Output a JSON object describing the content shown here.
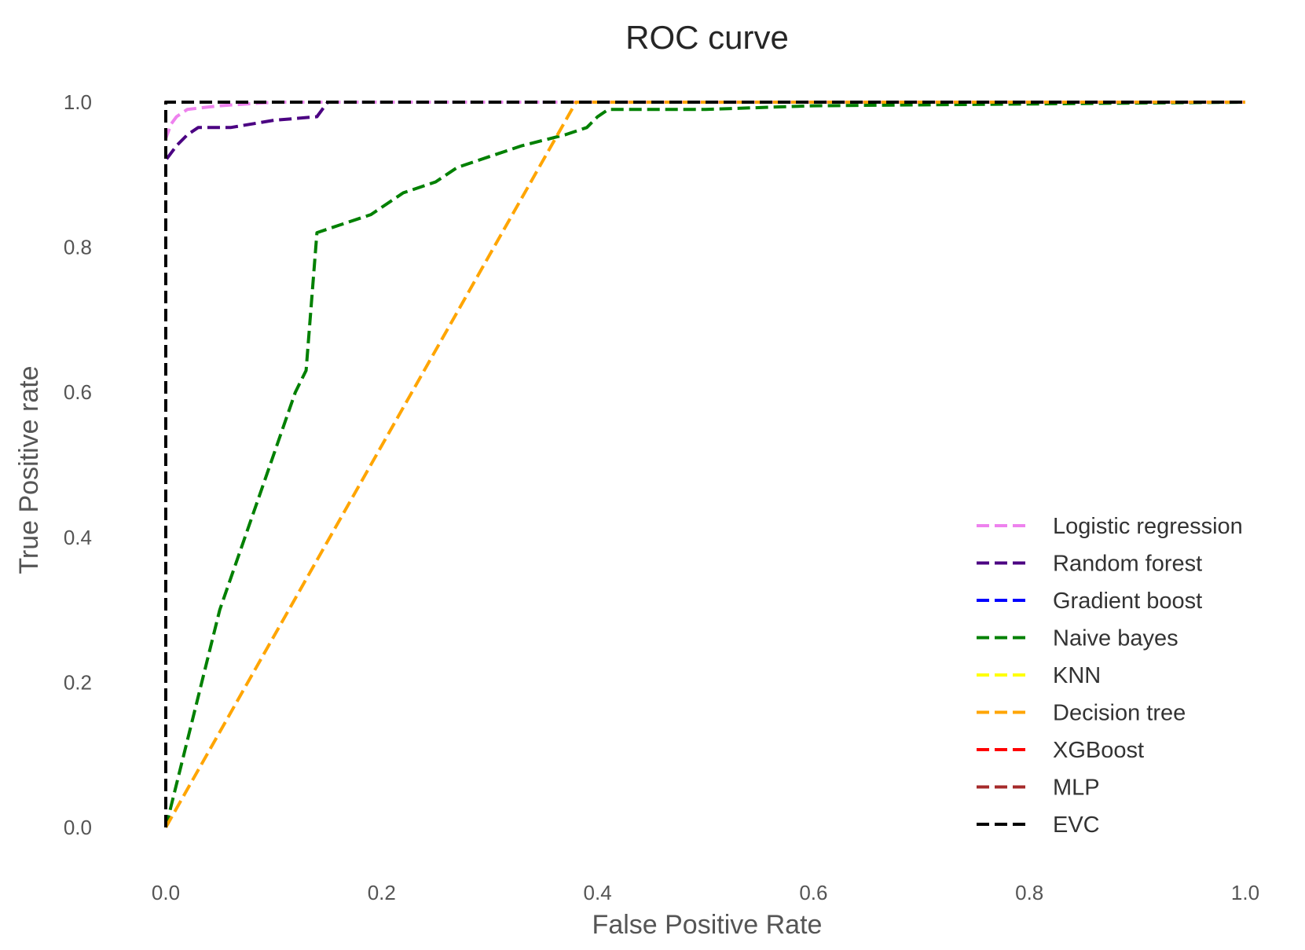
{
  "chart_data": {
    "type": "line",
    "title": "ROC curve",
    "xlabel": "False Positive Rate",
    "ylabel": "True Positive rate",
    "xlim": [
      0.0,
      1.0
    ],
    "ylim": [
      0.0,
      1.0
    ],
    "x_ticks": [
      "0.0",
      "0.2",
      "0.4",
      "0.6",
      "0.8",
      "1.0"
    ],
    "y_ticks": [
      "0.0",
      "0.2",
      "0.4",
      "0.6",
      "0.8",
      "1.0"
    ],
    "grid": false,
    "legend_position": "lower-right",
    "series": [
      {
        "name": "Logistic regression",
        "color": "#ee82ee",
        "x": [
          0.0,
          0.0,
          0.005,
          0.01,
          0.02,
          0.05,
          0.1,
          1.0
        ],
        "y": [
          0.0,
          0.95,
          0.97,
          0.98,
          0.99,
          0.995,
          1.0,
          1.0
        ]
      },
      {
        "name": "Random forest",
        "color": "#4b0082",
        "x": [
          0.0,
          0.0,
          0.005,
          0.01,
          0.02,
          0.03,
          0.06,
          0.1,
          0.14,
          0.15,
          1.0
        ],
        "y": [
          0.0,
          0.92,
          0.93,
          0.94,
          0.955,
          0.965,
          0.965,
          0.975,
          0.98,
          1.0,
          1.0
        ]
      },
      {
        "name": "Gradient boost",
        "color": "#0000ff",
        "x": [
          0.0,
          0.0,
          1.0
        ],
        "y": [
          0.0,
          1.0,
          1.0
        ]
      },
      {
        "name": "Naive bayes",
        "color": "#008000",
        "x": [
          0.0,
          0.05,
          0.12,
          0.13,
          0.14,
          0.16,
          0.19,
          0.22,
          0.25,
          0.27,
          0.3,
          0.33,
          0.37,
          0.39,
          0.4,
          0.41,
          0.43,
          0.5,
          0.6,
          1.0
        ],
        "y": [
          0.0,
          0.3,
          0.6,
          0.63,
          0.82,
          0.83,
          0.845,
          0.875,
          0.89,
          0.91,
          0.925,
          0.94,
          0.955,
          0.965,
          0.98,
          0.99,
          0.99,
          0.99,
          0.995,
          1.0
        ]
      },
      {
        "name": "KNN",
        "color": "#ffff00",
        "x": [
          0.0,
          0.0,
          1.0
        ],
        "y": [
          0.0,
          1.0,
          1.0
        ]
      },
      {
        "name": "Decision tree",
        "color": "#ffa500",
        "x": [
          0.0,
          0.38,
          1.0
        ],
        "y": [
          0.0,
          1.0,
          1.0
        ]
      },
      {
        "name": "XGBoost",
        "color": "#ff0000",
        "x": [
          0.0,
          0.0,
          1.0
        ],
        "y": [
          0.0,
          1.0,
          1.0
        ]
      },
      {
        "name": "MLP",
        "color": "#a52a2a",
        "x": [
          0.0,
          0.0,
          1.0
        ],
        "y": [
          0.0,
          1.0,
          1.0
        ]
      },
      {
        "name": "EVC",
        "color": "#000000",
        "x": [
          0.0,
          0.0,
          1.0
        ],
        "y": [
          0.0,
          1.0,
          1.0
        ]
      }
    ]
  }
}
